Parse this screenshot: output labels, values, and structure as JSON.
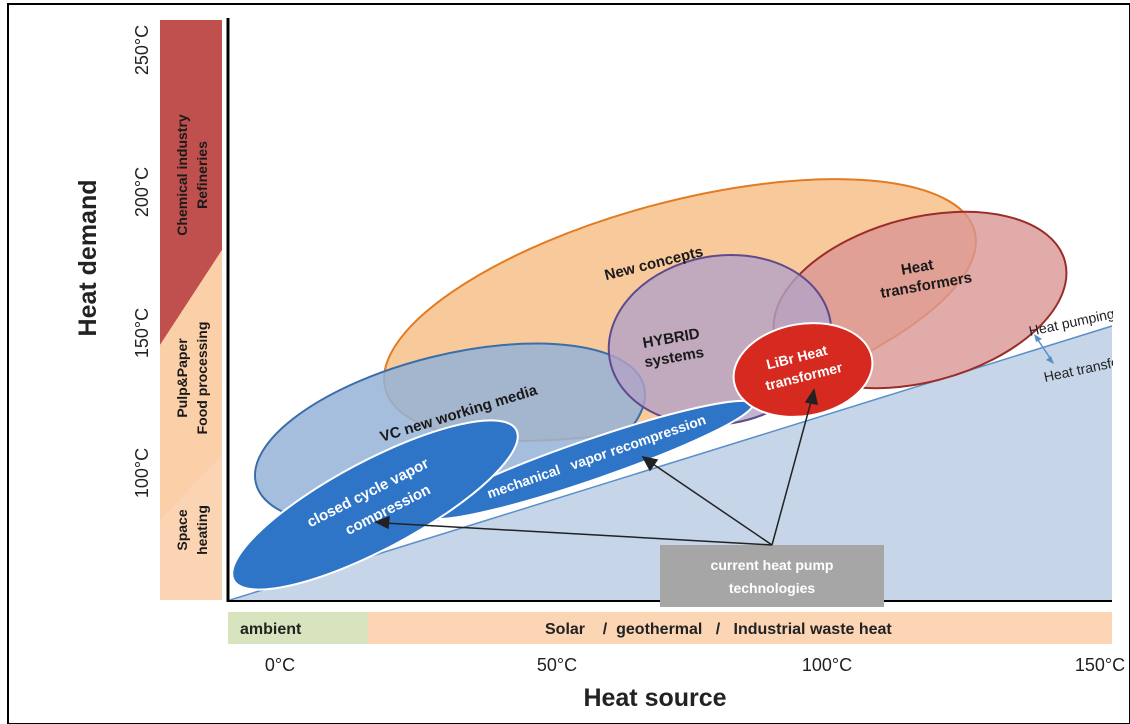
{
  "y_axis": {
    "title": "Heat demand",
    "ticks": [
      "250°C",
      "200°C",
      "150°C",
      "100°C"
    ]
  },
  "x_axis": {
    "title": "Heat source",
    "ticks": [
      "0°C",
      "50°C",
      "100°C",
      "150°C"
    ]
  },
  "demand_bands": {
    "chemical": [
      "Chemical industry",
      "Refineries"
    ],
    "pulp": [
      "Pulp&Paper",
      "Food processing"
    ],
    "space": [
      "Space",
      "heating"
    ]
  },
  "source_bands": {
    "ambient": "ambient",
    "solar": "Solar    /  geothermal   /   Industrial waste heat"
  },
  "regions": {
    "new_concepts": "New concepts",
    "heat_transformers": [
      "Heat",
      "transformers"
    ],
    "hybrid": [
      "HYBRID",
      "systems"
    ],
    "vc_media": "VC new working media",
    "libr": [
      "LiBr Heat",
      "transformer"
    ],
    "closed_cycle": [
      "closed cycle vapor",
      "compression"
    ],
    "mvr": "mechanical   vapor recompression"
  },
  "callout": [
    "current heat pump",
    "technologies"
  ],
  "boundary": {
    "upper": "Heat pumping",
    "lower": "Heat transfer"
  },
  "colors": {
    "chemical": "#c0504d",
    "pulp": "#fbd4b4",
    "ambient": "#d7e4bd",
    "solar": "#fcd5b5",
    "wedge": "#c6d5e8",
    "new_concepts": "#f7c08a",
    "heat_transformers": "#d99694",
    "hybrid": "#b3a2c7",
    "vc_media": "#95b3d7",
    "blue_tech": "#2e75c8",
    "libr": "#d62a20",
    "callout": "#a6a6a6"
  }
}
